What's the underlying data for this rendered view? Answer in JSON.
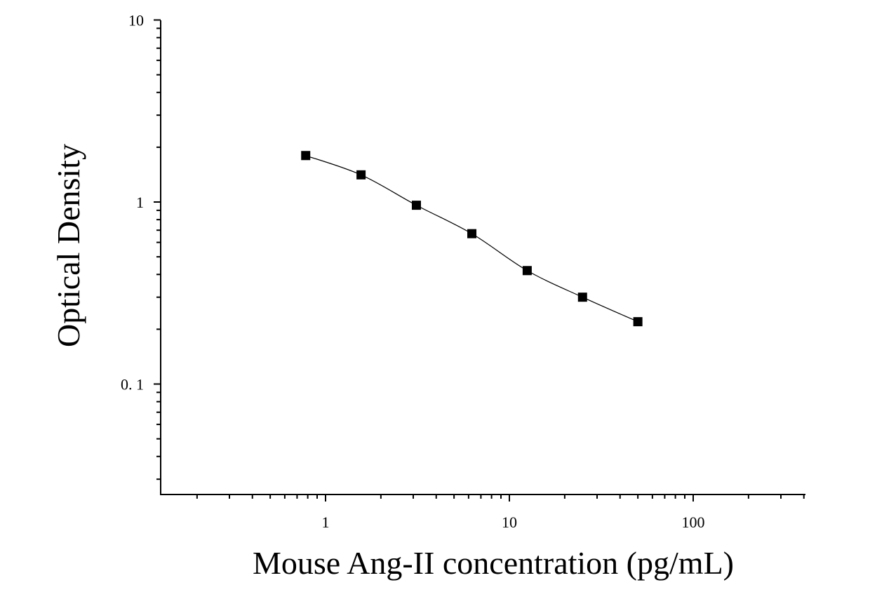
{
  "chart_data": {
    "type": "scatter",
    "title": "",
    "xlabel": "Mouse Ang-II concentration (pg/mL)",
    "ylabel": "Optical Density",
    "xscale": "log",
    "yscale": "log",
    "xlim": [
      0.11,
      400
    ],
    "ylim": [
      0.025,
      10
    ],
    "x_tick_labels": [
      "1",
      "10",
      "100"
    ],
    "x_tick_values": [
      1,
      10,
      100
    ],
    "y_tick_labels": [
      "0. 1",
      "1",
      "10"
    ],
    "y_tick_values": [
      0.1,
      1,
      10
    ],
    "grid": false,
    "legend": "none",
    "series": [
      {
        "marker": "square",
        "color": "#000000",
        "x": [
          0.78,
          1.56,
          3.12,
          6.25,
          12.5,
          25,
          50
        ],
        "y": [
          1.8,
          1.41,
          0.96,
          0.67,
          0.42,
          0.3,
          0.22
        ]
      }
    ],
    "fit_curve": {
      "type": "four-parameter logistic",
      "color": "#000000"
    }
  }
}
